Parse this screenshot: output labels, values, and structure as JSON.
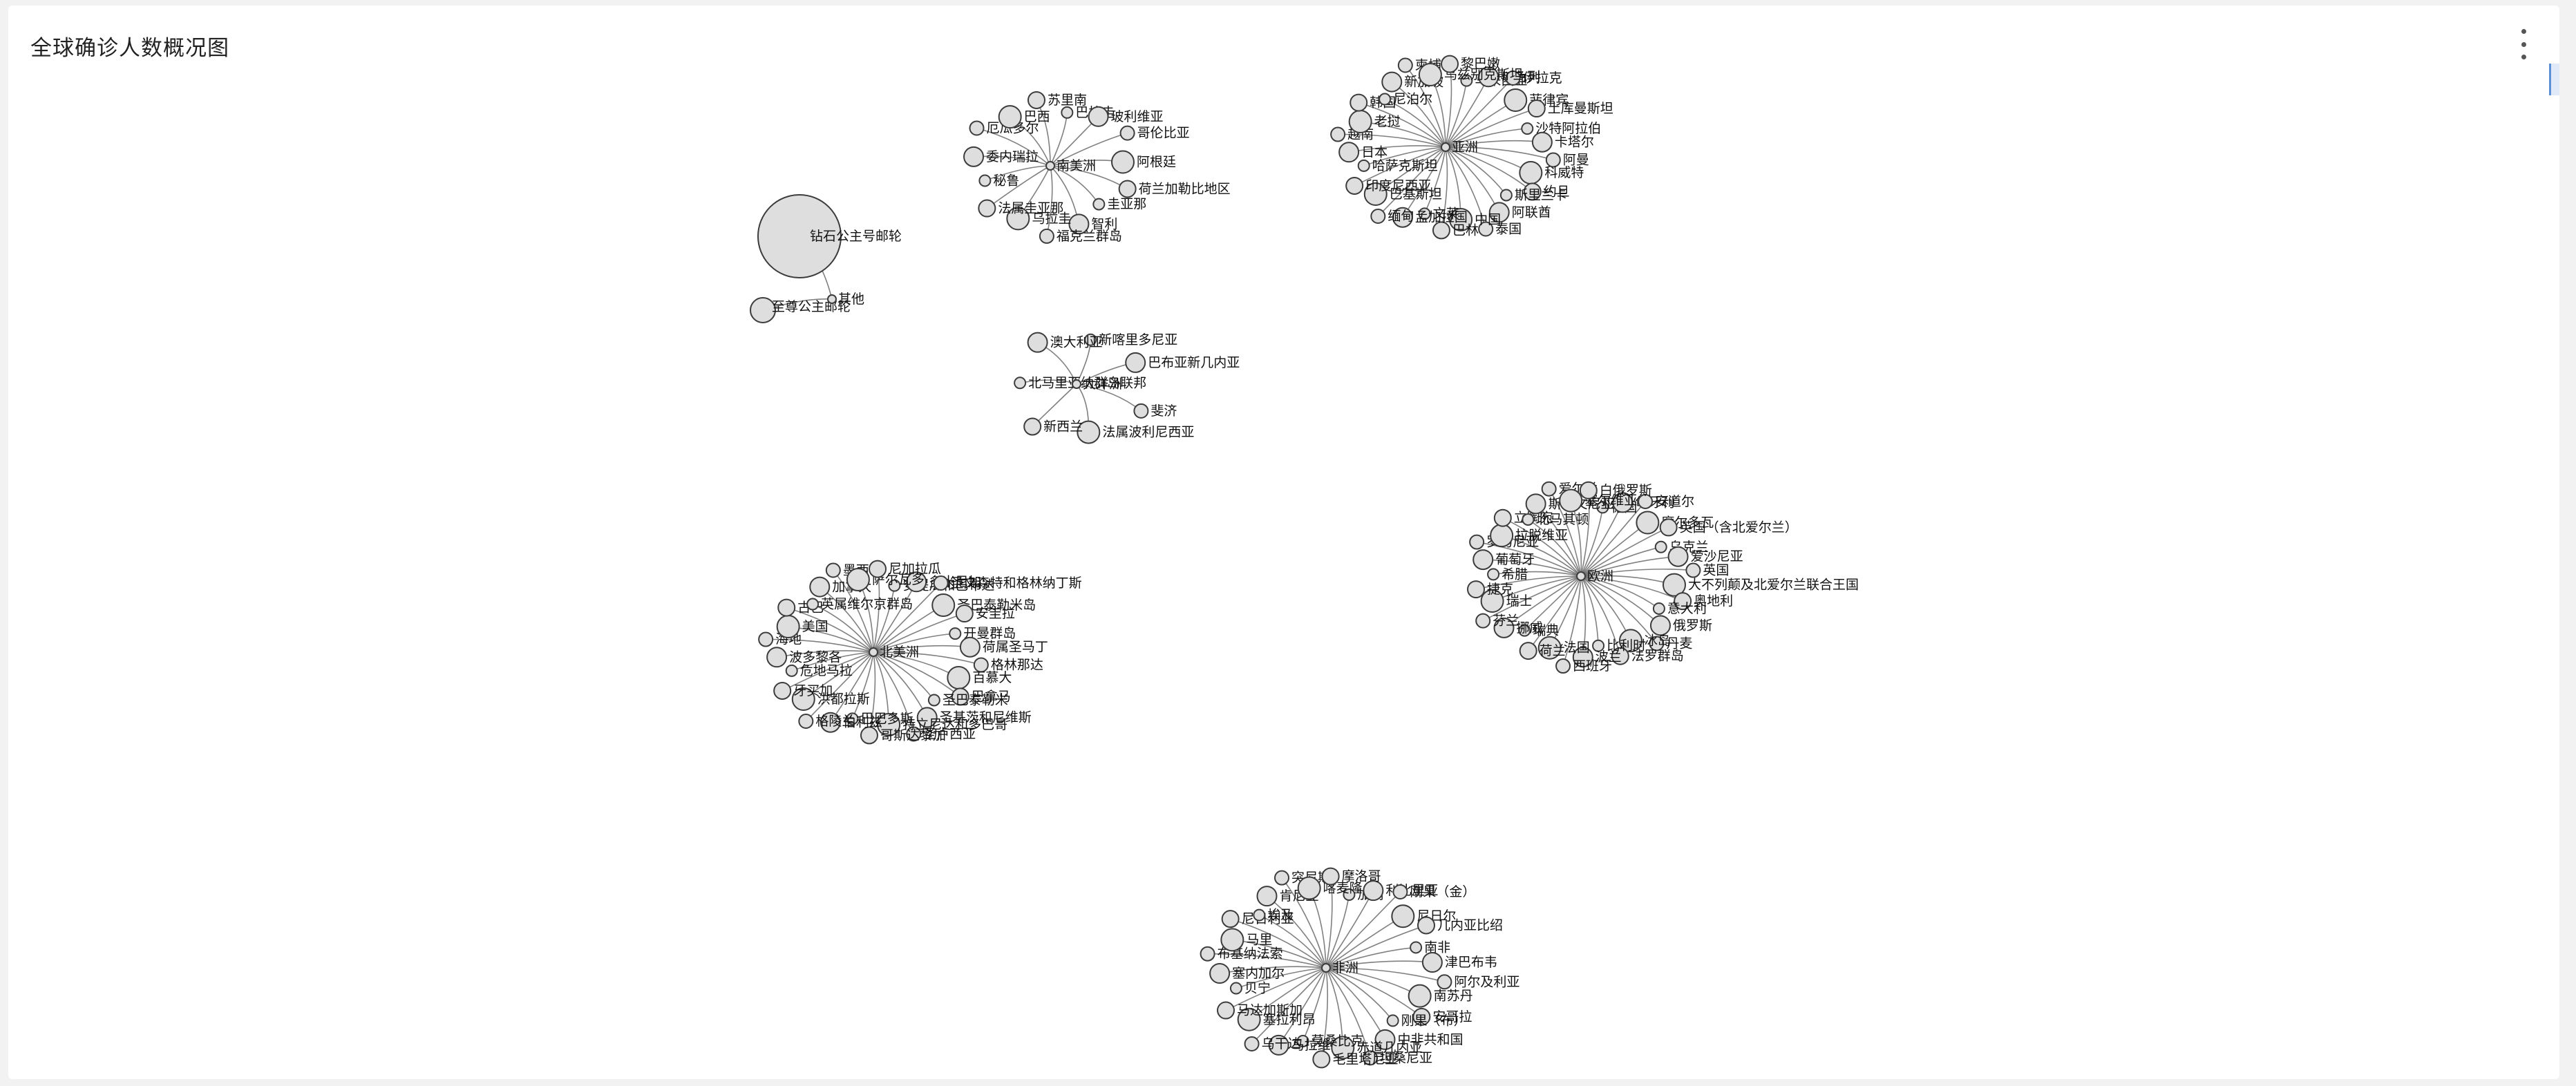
{
  "header": {
    "title": "全球确诊人数概况图",
    "more_icon": "more-vertical-icon"
  },
  "side_tab_icon": "panel-toggle-icon",
  "colors": {
    "node_fill": "#dedede",
    "node_stroke": "#3c3c3c",
    "edge": "#555555",
    "bg": "#ffffff"
  },
  "graph": {
    "clusters": [
      {
        "hub": "其他",
        "children": [
          {
            "name": "钻石公主号邮轮",
            "r": 60
          },
          {
            "name": "至尊公主邮轮",
            "r": 18
          }
        ]
      },
      {
        "hub": "南美洲",
        "children": [
          {
            "name": "巴拉圭"
          },
          {
            "name": "玻利维亚"
          },
          {
            "name": "哥伦比亚"
          },
          {
            "name": "阿根廷"
          },
          {
            "name": "荷兰加勒比地区"
          },
          {
            "name": "圭亚那"
          },
          {
            "name": "智利"
          },
          {
            "name": "福克兰群岛"
          },
          {
            "name": "乌拉圭"
          },
          {
            "name": "法属圭亚那"
          },
          {
            "name": "秘鲁"
          },
          {
            "name": "委内瑞拉"
          },
          {
            "name": "厄瓜多尔"
          },
          {
            "name": "巴西"
          },
          {
            "name": "苏里南"
          }
        ]
      },
      {
        "hub": "亚洲",
        "children": [
          {
            "name": "马来西亚"
          },
          {
            "name": "以色列"
          },
          {
            "name": "伊拉克"
          },
          {
            "name": "菲律宾"
          },
          {
            "name": "土库曼斯坦"
          },
          {
            "name": "沙特阿拉伯"
          },
          {
            "name": "卡塔尔"
          },
          {
            "name": "阿曼"
          },
          {
            "name": "科威特"
          },
          {
            "name": "约旦"
          },
          {
            "name": "斯里兰卡"
          },
          {
            "name": "阿联酋"
          },
          {
            "name": "泰国"
          },
          {
            "name": "中国"
          },
          {
            "name": "巴林"
          },
          {
            "name": "文莱"
          },
          {
            "name": "孟加拉国"
          },
          {
            "name": "缅甸"
          },
          {
            "name": "巴基斯坦"
          },
          {
            "name": "印度尼西亚"
          },
          {
            "name": "哈萨克斯坦"
          },
          {
            "name": "日本"
          },
          {
            "name": "越南"
          },
          {
            "name": "老挝"
          },
          {
            "name": "韩国"
          },
          {
            "name": "尼泊尔"
          },
          {
            "name": "新加坡"
          },
          {
            "name": "柬埔寨"
          },
          {
            "name": "乌兹别克斯坦"
          },
          {
            "name": "黎巴嫩"
          }
        ]
      },
      {
        "hub": "大洋洲",
        "children": [
          {
            "name": "新喀里多尼亚"
          },
          {
            "name": "巴布亚新几内亚"
          },
          {
            "name": "斐济"
          },
          {
            "name": "法属波利尼西亚"
          },
          {
            "name": "新西兰"
          },
          {
            "name": "北马里亚纳群岛联邦"
          },
          {
            "name": "澳大利亚"
          }
        ]
      },
      {
        "hub": "北美洲",
        "children": [
          {
            "name": "安提瓜和巴布达"
          },
          {
            "name": "多米尼加"
          },
          {
            "name": "圣文森特和格林纳丁斯"
          },
          {
            "name": "圣巴泰勒米岛"
          },
          {
            "name": "安圭拉"
          },
          {
            "name": "开曼群岛"
          },
          {
            "name": "荷属圣马丁"
          },
          {
            "name": "格林那达"
          },
          {
            "name": "百慕大"
          },
          {
            "name": "巴拿马"
          },
          {
            "name": "圣巴泰勒米"
          },
          {
            "name": "圣基茨和尼维斯"
          },
          {
            "name": "圣卢西亚"
          },
          {
            "name": "特立尼达和多巴哥"
          },
          {
            "name": "哥斯达黎加"
          },
          {
            "name": "巴巴多斯"
          },
          {
            "name": "伯利兹"
          },
          {
            "name": "格陵兰"
          },
          {
            "name": "洪都拉斯"
          },
          {
            "name": "牙买加"
          },
          {
            "name": "危地马拉"
          },
          {
            "name": "波多黎各"
          },
          {
            "name": "海地"
          },
          {
            "name": "美国"
          },
          {
            "name": "古巴"
          },
          {
            "name": "英属维尔京群岛"
          },
          {
            "name": "加拿大"
          },
          {
            "name": "墨西哥"
          },
          {
            "name": "萨尔瓦多"
          },
          {
            "name": "尼加拉瓜"
          }
        ]
      },
      {
        "hub": "欧洲",
        "children": [
          {
            "name": "德国"
          },
          {
            "name": "匈牙利"
          },
          {
            "name": "安道尔"
          },
          {
            "name": "摩尔多瓦"
          },
          {
            "name": "英国（含北爱尔兰）"
          },
          {
            "name": "乌克兰"
          },
          {
            "name": "爱沙尼亚"
          },
          {
            "name": "英国"
          },
          {
            "name": "大不列颠及北爱尔兰联合王国"
          },
          {
            "name": "奥地利"
          },
          {
            "name": "意大利"
          },
          {
            "name": "俄罗斯"
          },
          {
            "name": "丹麦"
          },
          {
            "name": "冰岛"
          },
          {
            "name": "法罗群岛"
          },
          {
            "name": "比利时"
          },
          {
            "name": "波兰"
          },
          {
            "name": "西班牙"
          },
          {
            "name": "法国"
          },
          {
            "name": "荷兰"
          },
          {
            "name": "瑞典"
          },
          {
            "name": "挪威"
          },
          {
            "name": "芬兰"
          },
          {
            "name": "瑞士"
          },
          {
            "name": "捷克"
          },
          {
            "name": "希腊"
          },
          {
            "name": "葡萄牙"
          },
          {
            "name": "罗马尼亚"
          },
          {
            "name": "拉脱维亚"
          },
          {
            "name": "立陶宛"
          },
          {
            "name": "北马其顿"
          },
          {
            "name": "斯洛文尼亚"
          },
          {
            "name": "爱尔兰"
          },
          {
            "name": "塞尔维亚"
          },
          {
            "name": "白俄罗斯"
          }
        ]
      },
      {
        "hub": "非洲",
        "children": [
          {
            "name": "加纳"
          },
          {
            "name": "利比里亚"
          },
          {
            "name": "刚果（金）"
          },
          {
            "name": "尼日尔"
          },
          {
            "name": "几内亚比绍"
          },
          {
            "name": "南非"
          },
          {
            "name": "津巴布韦"
          },
          {
            "name": "阿尔及利亚"
          },
          {
            "name": "南苏丹"
          },
          {
            "name": "安哥拉"
          },
          {
            "name": "刚果（布）"
          },
          {
            "name": "中非共和国"
          },
          {
            "name": "坦桑尼亚"
          },
          {
            "name": "赤道几内亚"
          },
          {
            "name": "毛里塔尼亚"
          },
          {
            "name": "莫桑比克"
          },
          {
            "name": "马拉维"
          },
          {
            "name": "乌干达"
          },
          {
            "name": "塞拉利昂"
          },
          {
            "name": "马达加斯加"
          },
          {
            "name": "贝宁"
          },
          {
            "name": "塞内加尔"
          },
          {
            "name": "布基纳法索"
          },
          {
            "name": "马里"
          },
          {
            "name": "尼日利亚"
          },
          {
            "name": "埃及"
          },
          {
            "name": "肯尼亚"
          },
          {
            "name": "突尼斯"
          },
          {
            "name": "喀麦隆"
          },
          {
            "name": "摩洛哥"
          }
        ]
      }
    ]
  }
}
